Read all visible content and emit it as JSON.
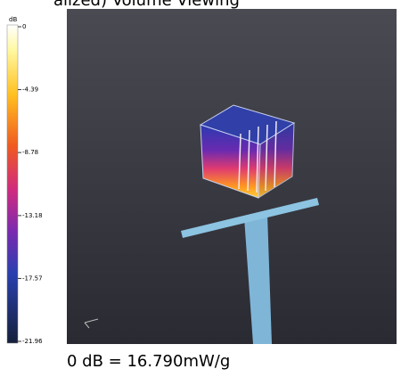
{
  "header": {
    "title": "alized) Volume Viewing"
  },
  "colorbar": {
    "unit": "dB",
    "ticks": [
      0,
      -4.39,
      -8.78,
      -13.18,
      -17.57,
      -21.96
    ]
  },
  "caption": "0 dB = 16.790mW/g"
}
